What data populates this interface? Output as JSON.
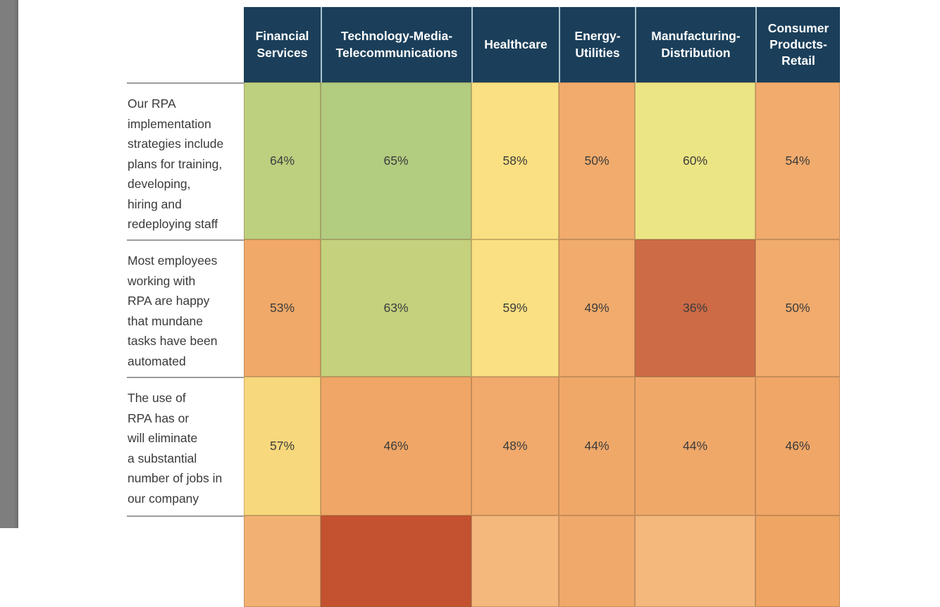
{
  "viewer": {
    "gutter_color": "#7e7e7e",
    "page_background": "#ffffff"
  },
  "palette": {
    "header_bg": "#1b3f5a",
    "header_text": "#ffffff",
    "header_divider": "#a9c3ce",
    "row_divider": "#9c9c9c",
    "cell_text": "#3c3c3c",
    "scale_high": "#b2cc7e",
    "scale_mid": "#fae082",
    "scale_low": "#f1ab6c",
    "scale_lowest": "#c4512f"
  },
  "chart_data": {
    "type": "heatmap",
    "title": "",
    "unit": "%",
    "columns": [
      "Financial Services",
      "Technology-Media-Telecommunications",
      "Healthcare",
      "Energy-Utilities",
      "Manufacturing-Distribution",
      "Consumer Products-Retail"
    ],
    "rows": [
      {
        "label": "Our RPA\nimplementation\nstrategies include\nplans for training,\ndeveloping,\nhiring and\nredeploying staff",
        "values": [
          "64%",
          "65%",
          "58%",
          "50%",
          "60%",
          "54%"
        ],
        "numeric": [
          64,
          65,
          58,
          50,
          60,
          54
        ],
        "colors": [
          "#bcd07f",
          "#b2cc80",
          "#fae082",
          "#f1ab6c",
          "#ece584",
          "#f1ab6c"
        ]
      },
      {
        "label": "Most employees\nworking with\nRPA are happy\nthat mundane\ntasks have been\nautomated",
        "values": [
          "53%",
          "63%",
          "59%",
          "49%",
          "36%",
          "50%"
        ],
        "numeric": [
          53,
          63,
          59,
          49,
          36,
          50
        ],
        "colors": [
          "#f0a968",
          "#c5d17d",
          "#fae082",
          "#f1ab6c",
          "#cd6b46",
          "#f1ab6c"
        ]
      },
      {
        "label": "The use of\nRPA has or\nwill eliminate\na substantial\nnumber of jobs in\nour company",
        "values": [
          "57%",
          "46%",
          "48%",
          "44%",
          "44%",
          "46%"
        ],
        "numeric": [
          57,
          46,
          48,
          44,
          44,
          46
        ],
        "colors": [
          "#f8d87c",
          "#f0a666",
          "#f1aa6c",
          "#f0a869",
          "#f0a869",
          "#f0a666"
        ]
      },
      {
        "label": "",
        "values": [
          "",
          "",
          "",
          "",
          "",
          ""
        ],
        "numeric": [
          null,
          null,
          null,
          null,
          null,
          null
        ],
        "colors": [
          "#f2b172",
          "#c4512f",
          "#f4b77c",
          "#f0a96a",
          "#f4b77c",
          "#efa563"
        ]
      }
    ]
  }
}
